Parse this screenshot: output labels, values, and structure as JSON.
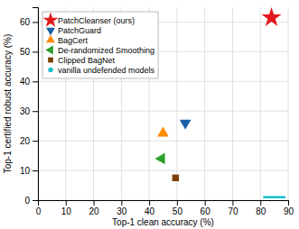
{
  "chart_data": {
    "type": "scatter",
    "x_label": "Top-1 clean accuracy (%)",
    "y_label": "Top-1 certified robust accuracy (%)",
    "xlim": [
      0,
      90
    ],
    "ylim": [
      0,
      65
    ],
    "xticks": [
      0,
      10,
      20,
      30,
      40,
      50,
      60,
      70,
      80,
      90
    ],
    "yticks": [
      0,
      10,
      20,
      30,
      40,
      50,
      60
    ],
    "grid": true,
    "legend": "upper left",
    "series": [
      {
        "name": "PatchCleanser (ours)",
        "color": "#e31a1c",
        "marker": "star",
        "x": [
          84.0
        ],
        "values": [
          61.5
        ]
      },
      {
        "name": "PatchGuard",
        "color": "#1a5fa8",
        "marker": "triangle-down",
        "x": [
          53.0
        ],
        "values": [
          26.0
        ]
      },
      {
        "name": "BagCert",
        "color": "#ff8c00",
        "marker": "triangle-up",
        "x": [
          45.0
        ],
        "values": [
          22.5
        ]
      },
      {
        "name": "De-randomized Smoothing",
        "color": "#2ca02c",
        "marker": "triangle-left",
        "x": [
          44.5
        ],
        "values": [
          14.0
        ]
      },
      {
        "name": "Clipped BagNet",
        "color": "#7b3f00",
        "marker": "square",
        "x": [
          49.5
        ],
        "values": [
          7.5
        ]
      },
      {
        "name": "vanilla undefended models",
        "type": "line",
        "color": "#17becf",
        "marker": "circle",
        "x": [
          81,
          89
        ],
        "values": [
          1.0,
          1.0
        ]
      }
    ]
  }
}
